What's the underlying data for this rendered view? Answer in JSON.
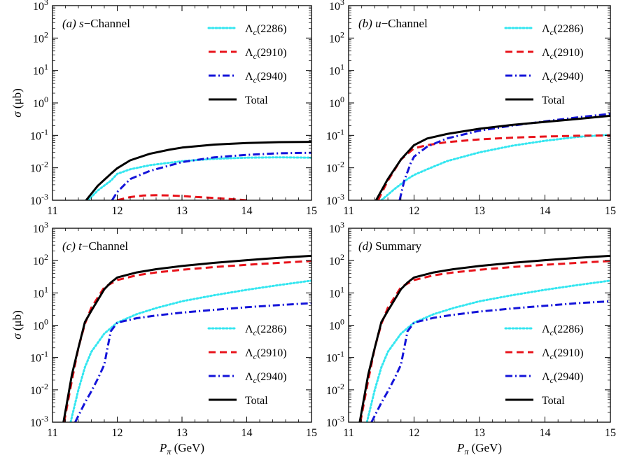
{
  "chart_data": {
    "type": "line",
    "figure": {
      "xlabel_unit": "(GeV)",
      "ylabel_unit": "(μb)",
      "xscale": "linear",
      "yscale": "log",
      "xlim": [
        11,
        15
      ],
      "ylim": [
        0.001,
        1000
      ],
      "xticks": [
        "11",
        "12",
        "13",
        "14",
        "15"
      ],
      "yticks": [
        {
          "base": "10",
          "exp": "-3"
        },
        {
          "base": "10",
          "exp": "-2"
        },
        {
          "base": "10",
          "exp": "-1"
        },
        {
          "base": "10",
          "exp": "0"
        },
        {
          "base": "10",
          "exp": "1"
        },
        {
          "base": "10",
          "exp": "2"
        },
        {
          "base": "10",
          "exp": "3"
        }
      ],
      "legend_entries": [
        "Λc(2286)",
        "Λc(2910)",
        "Λc(2940)",
        "Total"
      ],
      "series_colors": {
        "Λc(2286)": "#33e6f0",
        "Λc(2910)": "#e8141c",
        "Λc(2940)": "#1414d9",
        "Total": "#000000"
      }
    },
    "panels": [
      {
        "tag": "(a)",
        "var": "s",
        "name": "−Channel",
        "legend_placement": "top-right",
        "series": [
          {
            "name": "Λc(2286)",
            "x": [
              11.55,
              11.7,
              11.9,
              12.0,
              12.2,
              12.5,
              13.0,
              13.5,
              14.0,
              14.5,
              15.0
            ],
            "y": [
              0.001,
              0.002,
              0.004,
              0.0065,
              0.009,
              0.012,
              0.016,
              0.019,
              0.0205,
              0.021,
              0.0205
            ]
          },
          {
            "name": "Λc(2910)",
            "x": [
              12.0,
              12.2,
              12.4,
              12.6,
              12.8,
              13.0,
              13.2,
              13.5,
              13.8,
              14.0
            ],
            "y": [
              0.001,
              0.00125,
              0.0014,
              0.00143,
              0.0014,
              0.00135,
              0.00127,
              0.00118,
              0.00107,
              0.001
            ]
          },
          {
            "name": "Λc(2940)",
            "x": [
              11.92,
              12.0,
              12.2,
              12.5,
              13.0,
              13.5,
              14.0,
              14.5,
              15.0
            ],
            "y": [
              0.001,
              0.0018,
              0.0045,
              0.008,
              0.015,
              0.021,
              0.025,
              0.028,
              0.029
            ]
          },
          {
            "name": "Total",
            "x": [
              11.52,
              11.7,
              11.9,
              12.0,
              12.2,
              12.5,
              12.8,
              13.0,
              13.5,
              14.0,
              14.5,
              15.0
            ],
            "y": [
              0.001,
              0.0028,
              0.0065,
              0.0097,
              0.017,
              0.027,
              0.036,
              0.042,
              0.052,
              0.058,
              0.062,
              0.063
            ]
          }
        ]
      },
      {
        "tag": "(b)",
        "var": "u",
        "name": "−Channel",
        "legend_placement": "top-right",
        "series": [
          {
            "name": "Λc(2286)",
            "x": [
              11.5,
              11.7,
              11.9,
              12.0,
              12.2,
              12.5,
              13.0,
              13.5,
              14.0,
              14.5,
              15.0
            ],
            "y": [
              0.001,
              0.0022,
              0.0045,
              0.006,
              0.009,
              0.016,
              0.03,
              0.048,
              0.068,
              0.09,
              0.105
            ]
          },
          {
            "name": "Λc(2910)",
            "x": [
              11.45,
              11.6,
              11.8,
              12.0,
              12.2,
              12.5,
              13.0,
              13.5,
              14.0,
              14.5,
              15.0
            ],
            "y": [
              0.001,
              0.004,
              0.018,
              0.04,
              0.05,
              0.062,
              0.075,
              0.085,
              0.092,
              0.097,
              0.1
            ]
          },
          {
            "name": "Λc(2940)",
            "x": [
              11.78,
              11.85,
              11.95,
              12.0,
              12.2,
              12.5,
              13.0,
              13.5,
              14.0,
              14.5,
              15.0
            ],
            "y": [
              0.001,
              0.004,
              0.014,
              0.022,
              0.045,
              0.08,
              0.14,
              0.2,
              0.27,
              0.36,
              0.46
            ]
          },
          {
            "name": "Total",
            "x": [
              11.42,
              11.6,
              11.8,
              12.0,
              12.2,
              12.5,
              13.0,
              13.5,
              14.0,
              14.5,
              15.0
            ],
            "y": [
              0.001,
              0.0045,
              0.018,
              0.05,
              0.08,
              0.11,
              0.16,
              0.21,
              0.26,
              0.32,
              0.4
            ]
          }
        ]
      },
      {
        "tag": "(c)",
        "var": "t",
        "name": "−Channel",
        "legend_placement": "lower-right",
        "series": [
          {
            "name": "Λc(2286)",
            "x": [
              11.28,
              11.4,
              11.5,
              11.6,
              11.8,
              12.0,
              12.3,
              12.6,
              13.0,
              13.5,
              14.0,
              14.5,
              15.0
            ],
            "y": [
              0.001,
              0.01,
              0.05,
              0.15,
              0.55,
              1.2,
              2.2,
              3.4,
              5.5,
              8.5,
              12.5,
              17.5,
              24
            ]
          },
          {
            "name": "Λc(2910)",
            "x": [
              11.18,
              11.3,
              11.4,
              11.5,
              11.6,
              11.8,
              12.0,
              12.3,
              12.6,
              13.0,
              13.5,
              14.0,
              14.5,
              15.0
            ],
            "y": [
              0.001,
              0.02,
              0.2,
              1.1,
              3.5,
              15,
              25,
              35,
              43,
              52,
              63,
              74,
              85,
              97
            ]
          },
          {
            "name": "Λc(2940)",
            "x": [
              11.35,
              11.5,
              11.6,
              11.7,
              11.8,
              11.85,
              11.9,
              12.0,
              12.3,
              12.6,
              13.0,
              13.5,
              14.0,
              14.5,
              15.0
            ],
            "y": [
              0.001,
              0.004,
              0.009,
              0.022,
              0.06,
              0.2,
              0.65,
              1.2,
              1.65,
              2.0,
              2.45,
              3.0,
              3.6,
              4.2,
              4.8
            ]
          },
          {
            "name": "Total",
            "x": [
              11.17,
              11.3,
              11.4,
              11.5,
              11.6,
              11.8,
              11.9,
              12.0,
              12.3,
              12.6,
              13.0,
              13.5,
              14.0,
              14.5,
              15.0
            ],
            "y": [
              0.001,
              0.03,
              0.2,
              1.25,
              2.8,
              13,
              21,
              30,
              43,
              54,
              68,
              85,
              103,
              122,
              140
            ]
          }
        ]
      },
      {
        "tag": "(d)",
        "var": "",
        "name": "Summary",
        "legend_placement": "lower-right",
        "series": [
          {
            "name": "Λc(2286)",
            "x": [
              11.28,
              11.4,
              11.5,
              11.6,
              11.8,
              12.0,
              12.3,
              12.6,
              13.0,
              13.5,
              14.0,
              14.5,
              15.0
            ],
            "y": [
              0.001,
              0.01,
              0.05,
              0.15,
              0.55,
              1.2,
              2.2,
              3.4,
              5.5,
              8.5,
              12.5,
              17.5,
              24
            ]
          },
          {
            "name": "Λc(2910)",
            "x": [
              11.18,
              11.3,
              11.4,
              11.5,
              11.6,
              11.8,
              12.0,
              12.3,
              12.6,
              13.0,
              13.5,
              14.0,
              14.5,
              15.0
            ],
            "y": [
              0.001,
              0.02,
              0.2,
              1.1,
              3.5,
              15,
              25,
              35,
              43,
              52,
              63,
              74,
              85,
              97
            ]
          },
          {
            "name": "Λc(2940)",
            "x": [
              11.35,
              11.5,
              11.6,
              11.7,
              11.8,
              11.85,
              11.9,
              12.0,
              12.3,
              12.6,
              13.0,
              13.5,
              14.0,
              14.5,
              15.0
            ],
            "y": [
              0.001,
              0.004,
              0.009,
              0.022,
              0.06,
              0.2,
              0.65,
              1.2,
              1.7,
              2.1,
              2.65,
              3.3,
              4.0,
              4.8,
              5.5
            ]
          },
          {
            "name": "Total",
            "x": [
              11.17,
              11.3,
              11.4,
              11.5,
              11.6,
              11.8,
              11.9,
              12.0,
              12.3,
              12.6,
              13.0,
              13.5,
              14.0,
              14.5,
              15.0
            ],
            "y": [
              0.001,
              0.03,
              0.2,
              1.25,
              2.8,
              13,
              21,
              30,
              43,
              54,
              68,
              85,
              103,
              122,
              140
            ]
          }
        ]
      }
    ]
  }
}
